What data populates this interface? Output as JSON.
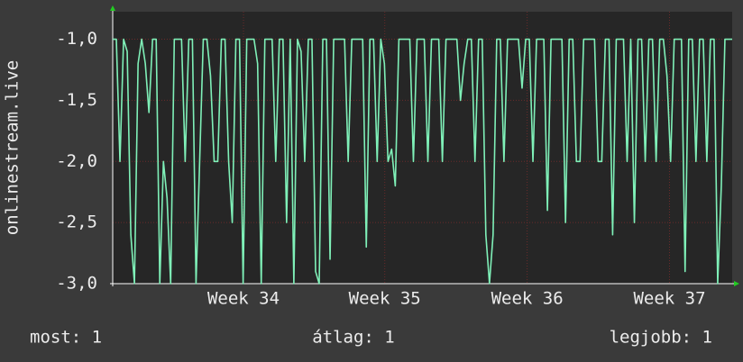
{
  "chart_data": {
    "type": "line",
    "y_label": "onlinestream.live",
    "series": [
      {
        "name": "onlinestream.live",
        "color": "#7ff0b8",
        "values": [
          -1,
          -1,
          -2,
          -1,
          -1.1,
          -2.6,
          -3,
          -1.2,
          -1,
          -1.2,
          -1.6,
          -1,
          -1,
          -3,
          -2,
          -2.3,
          -3,
          -1,
          -1,
          -1,
          -2,
          -1,
          -1,
          -3,
          -2,
          -1,
          -1,
          -1.3,
          -2,
          -2,
          -1,
          -1,
          -2,
          -2.5,
          -1,
          -1,
          -3,
          -1,
          -1,
          -1,
          -1.2,
          -3,
          -1,
          -1,
          -1,
          -2,
          -1,
          -1,
          -2.5,
          -1,
          -3,
          -1,
          -1.1,
          -2,
          -1,
          -1,
          -2.9,
          -3,
          -1,
          -1,
          -2.8,
          -1,
          -1,
          -1,
          -1,
          -2,
          -1,
          -1,
          -1,
          -1,
          -2.7,
          -1,
          -1,
          -2,
          -1,
          -1.2,
          -2,
          -1.9,
          -2.2,
          -1,
          -1,
          -1,
          -1,
          -2,
          -1,
          -1,
          -1,
          -2,
          -1,
          -1,
          -1,
          -2,
          -1,
          -1,
          -1,
          -1,
          -1.5,
          -1.2,
          -1,
          -1,
          -2,
          -1,
          -1,
          -2.6,
          -3,
          -2.6,
          -1,
          -1,
          -2,
          -1,
          -1,
          -1,
          -1,
          -1.4,
          -1,
          -1,
          -2,
          -1,
          -1,
          -1,
          -2.4,
          -1,
          -1,
          -1,
          -1,
          -2.5,
          -1,
          -1,
          -2,
          -2,
          -1,
          -1,
          -1,
          -1,
          -2,
          -2,
          -1,
          -1,
          -2.6,
          -1,
          -1,
          -1,
          -2,
          -1,
          -2.5,
          -1,
          -1,
          -2,
          -1,
          -1,
          -2,
          -1,
          -1,
          -1.3,
          -2,
          -1,
          -1,
          -1,
          -2.9,
          -1,
          -1,
          -2,
          -1,
          -1,
          -2,
          -1,
          -1,
          -3,
          -2.2,
          -1,
          -1,
          -1
        ]
      }
    ],
    "xlim": [
      0,
      171
    ],
    "xticks": [
      {
        "value": 36.1,
        "label": "Week 34"
      },
      {
        "value": 75.1,
        "label": "Week 35"
      },
      {
        "value": 114.4,
        "label": "Week 36"
      },
      {
        "value": 153.7,
        "label": "Week 37"
      }
    ],
    "ylim": [
      -3.0,
      -0.775
    ],
    "yticks": [
      {
        "value": -3,
        "label": "-3,0"
      },
      {
        "value": -2.5,
        "label": "-2,5"
      },
      {
        "value": -2,
        "label": "-2,0"
      },
      {
        "value": -1.5,
        "label": "-1,5"
      },
      {
        "value": -1,
        "label": "-1,0"
      }
    ],
    "grid": true,
    "stats": [
      "most: 1",
      "átlag: 1",
      "legjobb: 1"
    ]
  }
}
